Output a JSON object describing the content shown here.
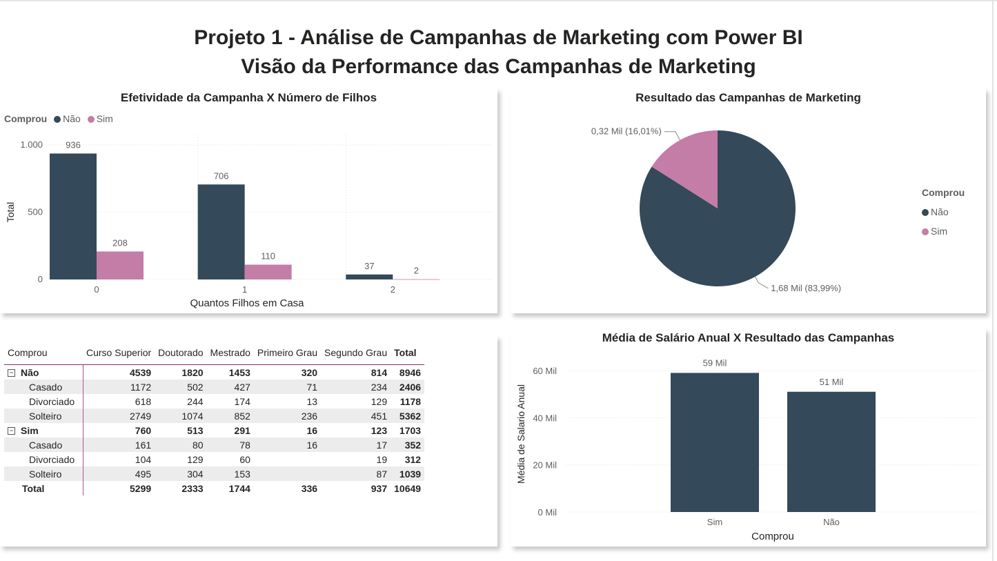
{
  "title": {
    "line1": "Projeto 1 - Análise de Campanhas de Marketing com Power BI",
    "line2": "Visão da Performance das Campanhas de Marketing"
  },
  "colors": {
    "nao": "#34495a",
    "sim": "#c47da6",
    "accent": "#8a2a66"
  },
  "legend": {
    "title": "Comprou",
    "nao": "Não",
    "sim": "Sim"
  },
  "chart_data": [
    {
      "id": "filhos",
      "type": "bar",
      "title": "Efetividade da Campanha X Número de Filhos",
      "xlabel": "Quantos Filhos em Casa",
      "ylabel": "Total",
      "categories": [
        "0",
        "1",
        "2"
      ],
      "series": [
        {
          "name": "Não",
          "values": [
            936,
            706,
            37
          ],
          "labels": [
            "936",
            "706",
            "37"
          ]
        },
        {
          "name": "Sim",
          "values": [
            208,
            110,
            2
          ],
          "labels": [
            "208",
            "110",
            "2"
          ]
        }
      ],
      "ylim": [
        0,
        1000
      ],
      "yticks": [
        0,
        500,
        1000
      ],
      "ytick_labels": [
        "0",
        "500",
        "1.000"
      ],
      "legend_position": "top-left",
      "grid": true
    },
    {
      "id": "resultado",
      "type": "pie",
      "title": "Resultado das Campanhas de Marketing",
      "slices": [
        {
          "name": "Não",
          "value": 1.68,
          "percent": 83.99,
          "label": "1,68 Mil (83,99%)"
        },
        {
          "name": "Sim",
          "value": 0.32,
          "percent": 16.01,
          "label": "0,32 Mil (16,01%)"
        }
      ],
      "legend_position": "right"
    },
    {
      "id": "salario",
      "type": "bar",
      "title": "Média de Salário Anual X Resultado das Campanhas",
      "xlabel": "Comprou",
      "ylabel": "Média de Salario Anual",
      "categories": [
        "Sim",
        "Não"
      ],
      "values": [
        59,
        51
      ],
      "value_labels": [
        "59 Mil",
        "51 Mil"
      ],
      "ylim": [
        0,
        60
      ],
      "yticks": [
        0,
        20,
        40,
        60
      ],
      "ytick_labels": [
        "0 Mil",
        "20 Mil",
        "40 Mil",
        "60 Mil"
      ],
      "grid": true
    }
  ],
  "matrix": {
    "corner": "Comprou",
    "columns": [
      "Curso Superior",
      "Doutorado",
      "Mestrado",
      "Primeiro Grau",
      "Segundo Grau",
      "Total"
    ],
    "rows": [
      {
        "kind": "group",
        "label": "Não",
        "values": [
          "4539",
          "1820",
          "1453",
          "320",
          "814",
          "8946"
        ]
      },
      {
        "kind": "child",
        "label": "Casado",
        "values": [
          "1172",
          "502",
          "427",
          "71",
          "234",
          "2406"
        ]
      },
      {
        "kind": "child",
        "label": "Divorciado",
        "values": [
          "618",
          "244",
          "174",
          "13",
          "129",
          "1178"
        ]
      },
      {
        "kind": "child",
        "label": "Solteiro",
        "values": [
          "2749",
          "1074",
          "852",
          "236",
          "451",
          "5362"
        ]
      },
      {
        "kind": "group",
        "label": "Sim",
        "values": [
          "760",
          "513",
          "291",
          "16",
          "123",
          "1703"
        ]
      },
      {
        "kind": "child",
        "label": "Casado",
        "values": [
          "161",
          "80",
          "78",
          "16",
          "17",
          "352"
        ]
      },
      {
        "kind": "child",
        "label": "Divorciado",
        "values": [
          "104",
          "129",
          "60",
          "",
          "19",
          "312"
        ]
      },
      {
        "kind": "child",
        "label": "Solteiro",
        "values": [
          "495",
          "304",
          "153",
          "",
          "87",
          "1039"
        ]
      },
      {
        "kind": "grand",
        "label": "Total",
        "values": [
          "5299",
          "2333",
          "1744",
          "336",
          "937",
          "10649"
        ]
      }
    ]
  }
}
